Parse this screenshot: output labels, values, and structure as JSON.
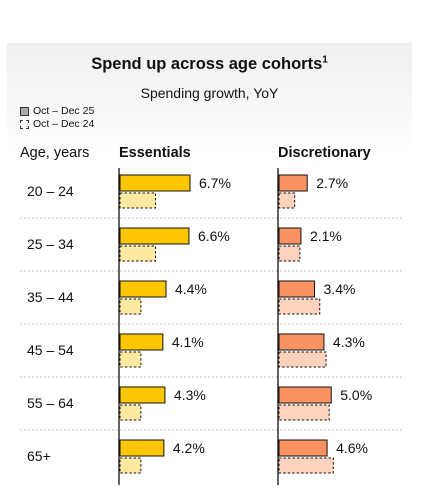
{
  "legend": [
    {
      "label": "Oct – Dec 25",
      "style": "solid"
    },
    {
      "label": "Oct – Dec 24",
      "style": "dashed"
    }
  ],
  "colors": {
    "essentials_current": "#fdc700",
    "essentials_previous": "#fdeaa0",
    "discretionary_current": "#fb9262",
    "discretionary_previous": "#fed3bd"
  },
  "chart_data": {
    "type": "bar",
    "title": "Spend up across age cohorts",
    "title_footnote": "1",
    "subtitle": "Spending growth, YoY",
    "category_header": "Age, years",
    "categories": [
      "20 – 24",
      "25 – 34",
      "35 – 44",
      "45 – 54",
      "55 – 64",
      "65+"
    ],
    "panels": [
      {
        "name": "Essentials",
        "series": [
          {
            "name": "Oct – Dec 25",
            "values": [
              6.7,
              6.6,
              4.4,
              4.1,
              4.3,
              4.2
            ],
            "labels": [
              "6.7%",
              "6.6%",
              "4.4%",
              "4.1%",
              "4.3%",
              "4.2%"
            ]
          },
          {
            "name": "Oct – Dec 24",
            "values": [
              3.4,
              3.4,
              2.0,
              2.0,
              2.0,
              2.0
            ]
          }
        ]
      },
      {
        "name": "Discretionary",
        "series": [
          {
            "name": "Oct – Dec 25",
            "values": [
              2.7,
              2.1,
              3.4,
              4.3,
              5.0,
              4.6
            ],
            "labels": [
              "2.7%",
              "2.1%",
              "3.4%",
              "4.3%",
              "5.0%",
              "4.6%"
            ]
          },
          {
            "name": "Oct – Dec 24",
            "values": [
              1.5,
              2.0,
              3.9,
              4.5,
              4.8,
              5.2
            ]
          }
        ]
      }
    ],
    "xlim": [
      0,
      10
    ],
    "grid": false,
    "legend_position": "top-left"
  }
}
